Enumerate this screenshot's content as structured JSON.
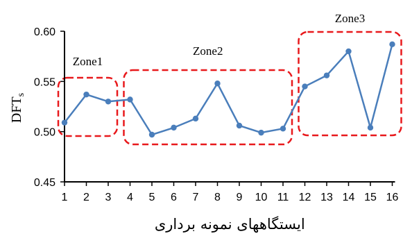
{
  "chart_data": {
    "type": "line",
    "xlabel": "ایستگاههای نمونه برداری",
    "ylabel": "DFTs",
    "x": [
      1,
      2,
      3,
      4,
      5,
      6,
      7,
      8,
      9,
      10,
      11,
      12,
      13,
      14,
      15,
      16
    ],
    "series": [
      {
        "values": [
          0.509,
          0.537,
          0.53,
          0.532,
          0.497,
          0.504,
          0.513,
          0.548,
          0.506,
          0.499,
          0.503,
          0.545,
          0.556,
          0.58,
          0.504,
          0.587
        ]
      }
    ],
    "ylim": [
      0.45,
      0.6
    ],
    "yticks": [
      "0.45",
      "0.50",
      "0.55",
      "0.60"
    ],
    "xticks": [
      "1",
      "2",
      "3",
      "4",
      "5",
      "6",
      "7",
      "8",
      "9",
      "10",
      "11",
      "12",
      "13",
      "14",
      "15",
      "16"
    ],
    "grid": false,
    "annotations": [
      {
        "label": "Zone1",
        "from": 1,
        "to": 3
      },
      {
        "label": "Zone2",
        "from": 4,
        "to": 11
      },
      {
        "label": "Zone3",
        "from": 12,
        "to": 16
      }
    ],
    "colors": {
      "line": "#4a7ebb",
      "marker": "#4a7ebb",
      "zone_border": "#e8191c",
      "axis": "#000000"
    }
  }
}
